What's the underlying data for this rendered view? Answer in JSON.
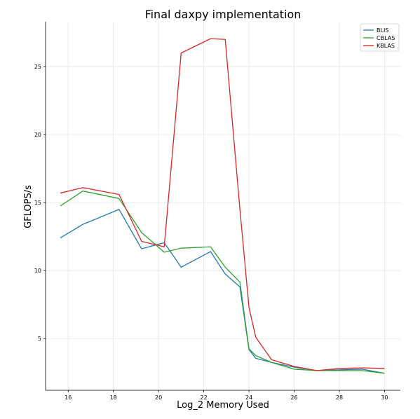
{
  "chart_data": {
    "type": "line",
    "title": "Final daxpy implementation",
    "xlabel": "Log_2 Memory Used",
    "ylabel": "GFLOPS/s",
    "xlim": [
      15,
      30.7
    ],
    "ylim": [
      1.2,
      28.3
    ],
    "xticks": [
      16,
      18,
      20,
      22,
      24,
      26,
      28,
      30
    ],
    "yticks": [
      5,
      10,
      15,
      20,
      25
    ],
    "grid": true,
    "legend_position": "top-right",
    "series": [
      {
        "name": "BLIS",
        "color": "#1f77b4",
        "x": [
          15.65,
          16.65,
          18.25,
          19.25,
          20.25,
          21.0,
          22.3,
          22.95,
          23.6,
          24.0,
          24.3,
          25.0,
          26.0,
          27.0,
          28.0,
          29.0,
          30.0
        ],
        "y": [
          12.4,
          13.4,
          14.5,
          11.6,
          12.05,
          10.25,
          11.4,
          9.75,
          8.8,
          4.2,
          3.55,
          3.25,
          2.9,
          2.65,
          2.7,
          2.75,
          2.45
        ]
      },
      {
        "name": "CBLAS",
        "color": "#2ca02c",
        "x": [
          15.65,
          16.65,
          18.25,
          19.25,
          20.25,
          21.0,
          22.3,
          22.95,
          23.6,
          24.0,
          24.3,
          25.0,
          26.0,
          27.0,
          28.0,
          29.0,
          30.0
        ],
        "y": [
          14.75,
          15.85,
          15.3,
          12.8,
          11.35,
          11.65,
          11.75,
          10.25,
          9.15,
          4.25,
          3.75,
          3.25,
          2.75,
          2.65,
          2.65,
          2.65,
          2.45
        ]
      },
      {
        "name": "KBLAS",
        "color": "#d62728",
        "x": [
          15.65,
          16.65,
          18.25,
          19.25,
          20.25,
          21.0,
          22.3,
          22.95,
          23.6,
          24.0,
          24.3,
          25.0,
          26.0,
          27.0,
          28.0,
          29.0,
          30.0
        ],
        "y": [
          15.7,
          16.1,
          15.6,
          12.15,
          11.75,
          26.0,
          27.05,
          27.0,
          14.5,
          7.3,
          5.1,
          3.45,
          2.95,
          2.65,
          2.8,
          2.85,
          2.8
        ]
      }
    ]
  }
}
